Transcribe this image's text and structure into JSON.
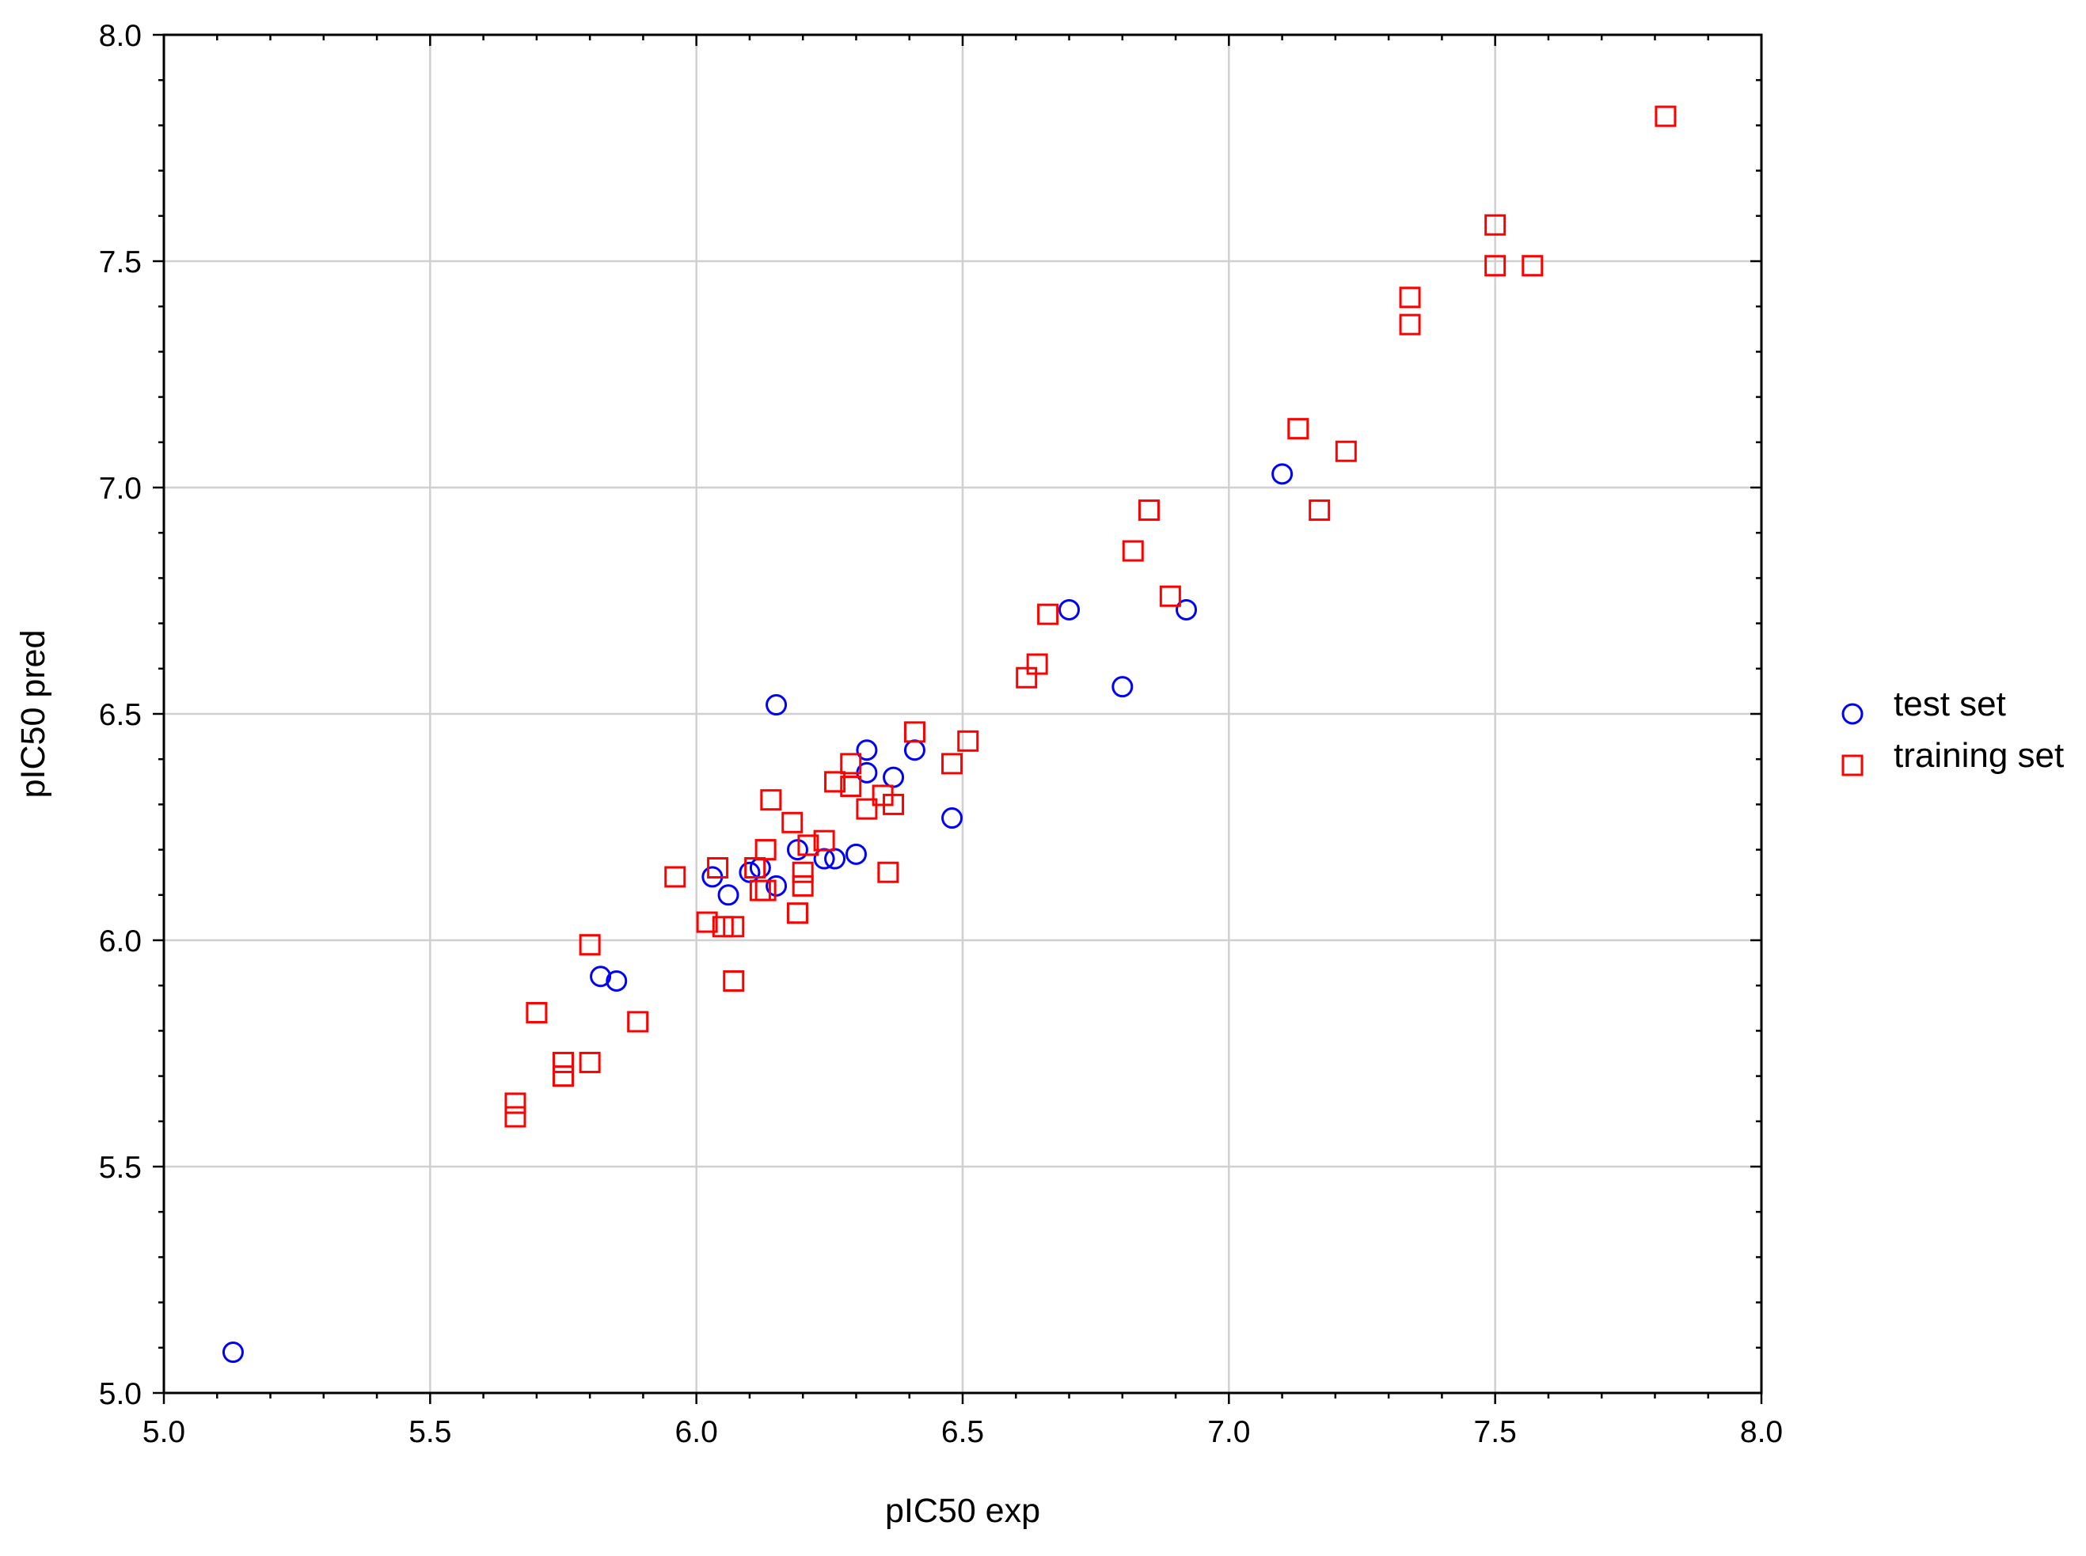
{
  "chart_data": {
    "type": "scatter",
    "xlabel": "pIC50 exp",
    "ylabel": "pIC50 pred",
    "xlim": [
      5.0,
      8.0
    ],
    "ylim": [
      5.0,
      8.0
    ],
    "x_ticks": [
      "5.0",
      "5.5",
      "6.0",
      "6.5",
      "7.0",
      "7.5",
      "8.0"
    ],
    "y_ticks": [
      "5.0",
      "5.5",
      "6.0",
      "6.5",
      "7.0",
      "7.5",
      "8.0"
    ],
    "grid": true,
    "legend_position": "right",
    "series": [
      {
        "name": "test set",
        "marker": "circle",
        "color": "#0000ff",
        "points": [
          [
            5.13,
            5.09
          ],
          [
            5.82,
            5.92
          ],
          [
            5.85,
            5.91
          ],
          [
            6.03,
            6.14
          ],
          [
            6.06,
            6.1
          ],
          [
            6.1,
            6.15
          ],
          [
            6.12,
            6.16
          ],
          [
            6.15,
            6.12
          ],
          [
            6.15,
            6.52
          ],
          [
            6.19,
            6.2
          ],
          [
            6.24,
            6.18
          ],
          [
            6.26,
            6.18
          ],
          [
            6.3,
            6.19
          ],
          [
            6.32,
            6.37
          ],
          [
            6.32,
            6.42
          ],
          [
            6.37,
            6.36
          ],
          [
            6.41,
            6.42
          ],
          [
            6.48,
            6.27
          ],
          [
            6.7,
            6.73
          ],
          [
            6.8,
            6.56
          ],
          [
            6.92,
            6.73
          ],
          [
            7.1,
            7.03
          ]
        ]
      },
      {
        "name": "training set",
        "marker": "square",
        "color": "#ff0000",
        "points": [
          [
            5.66,
            5.61
          ],
          [
            5.66,
            5.64
          ],
          [
            5.7,
            5.84
          ],
          [
            5.75,
            5.7
          ],
          [
            5.75,
            5.73
          ],
          [
            5.8,
            5.73
          ],
          [
            5.8,
            5.99
          ],
          [
            5.89,
            5.82
          ],
          [
            5.96,
            6.14
          ],
          [
            6.02,
            6.04
          ],
          [
            6.04,
            6.16
          ],
          [
            6.05,
            6.03
          ],
          [
            6.07,
            6.03
          ],
          [
            6.07,
            5.91
          ],
          [
            6.11,
            6.16
          ],
          [
            6.12,
            6.11
          ],
          [
            6.13,
            6.11
          ],
          [
            6.13,
            6.2
          ],
          [
            6.14,
            6.31
          ],
          [
            6.18,
            6.26
          ],
          [
            6.19,
            6.06
          ],
          [
            6.2,
            6.12
          ],
          [
            6.2,
            6.15
          ],
          [
            6.21,
            6.21
          ],
          [
            6.24,
            6.22
          ],
          [
            6.26,
            6.35
          ],
          [
            6.29,
            6.34
          ],
          [
            6.29,
            6.39
          ],
          [
            6.32,
            6.29
          ],
          [
            6.35,
            6.32
          ],
          [
            6.36,
            6.15
          ],
          [
            6.37,
            6.3
          ],
          [
            6.41,
            6.46
          ],
          [
            6.48,
            6.39
          ],
          [
            6.51,
            6.44
          ],
          [
            6.62,
            6.58
          ],
          [
            6.64,
            6.61
          ],
          [
            6.66,
            6.72
          ],
          [
            6.82,
            6.86
          ],
          [
            6.85,
            6.95
          ],
          [
            6.89,
            6.76
          ],
          [
            7.13,
            7.13
          ],
          [
            7.17,
            6.95
          ],
          [
            7.22,
            7.08
          ],
          [
            7.34,
            7.36
          ],
          [
            7.34,
            7.42
          ],
          [
            7.5,
            7.49
          ],
          [
            7.5,
            7.58
          ],
          [
            7.57,
            7.49
          ],
          [
            7.82,
            7.82
          ]
        ]
      }
    ]
  }
}
